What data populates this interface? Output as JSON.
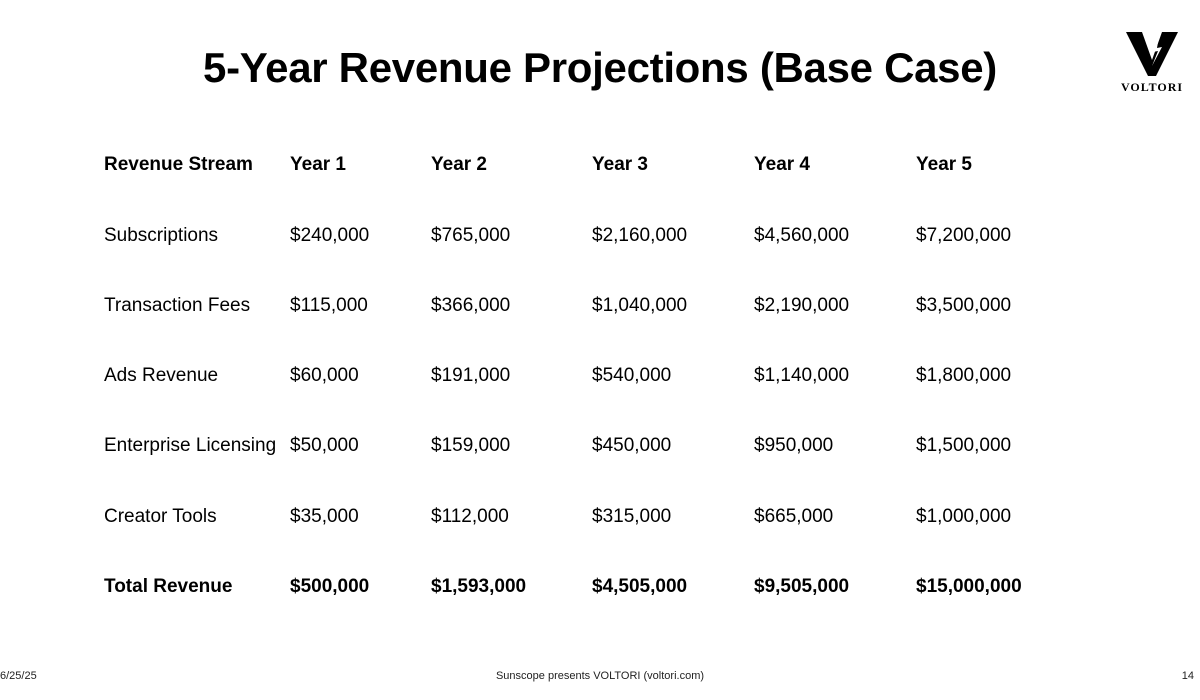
{
  "title": "5-Year Revenue Projections (Base Case)",
  "logo": {
    "text": "VOLTORI"
  },
  "table": {
    "headers": [
      "Revenue Stream",
      "Year 1",
      "Year 2",
      "Year 3",
      "Year 4",
      "Year 5"
    ],
    "rows": [
      [
        "Subscriptions",
        "$240,000",
        "$765,000",
        "$2,160,000",
        "$4,560,000",
        "$7,200,000"
      ],
      [
        "Transaction Fees",
        "$115,000",
        "$366,000",
        "$1,040,000",
        "$2,190,000",
        "$3,500,000"
      ],
      [
        "Ads Revenue",
        "$60,000",
        "$191,000",
        "$540,000",
        "$1,140,000",
        "$1,800,000"
      ],
      [
        "Enterprise Licensing",
        "$50,000",
        "$159,000",
        "$450,000",
        "$950,000",
        "$1,500,000"
      ],
      [
        "Creator Tools",
        "$35,000",
        "$112,000",
        "$315,000",
        "$665,000",
        "$1,000,000"
      ]
    ],
    "total": [
      "Total Revenue",
      "$500,000",
      "$1,593,000",
      "$4,505,000",
      "$9,505,000",
      "$15,000,000"
    ]
  },
  "footer": {
    "date": "6/25/25",
    "center": "Sunscope presents VOLTORI (voltori.com)",
    "page": "14"
  }
}
